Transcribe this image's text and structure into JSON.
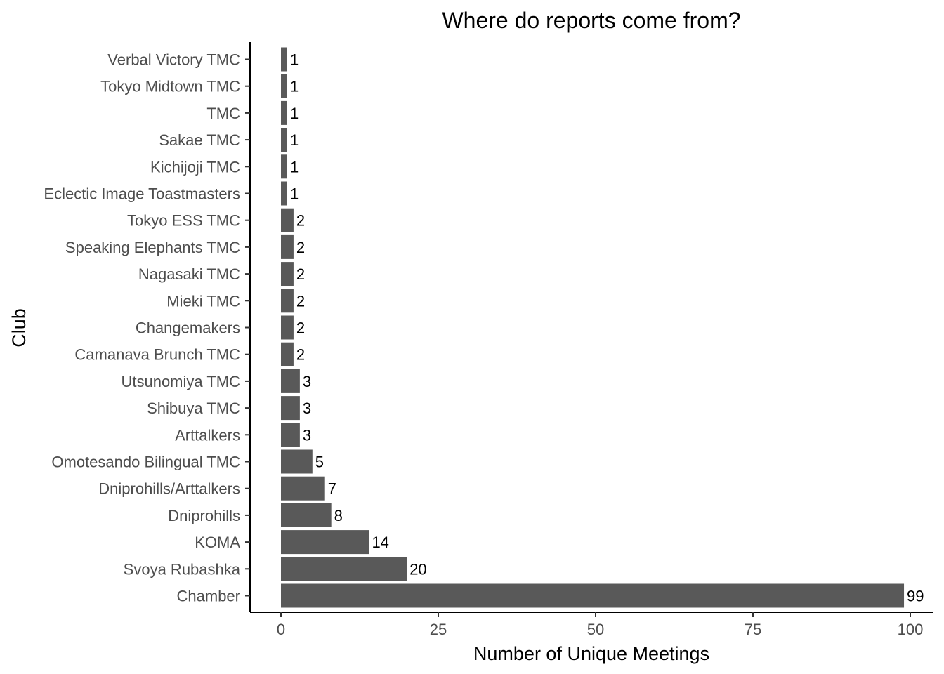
{
  "chart_data": {
    "type": "bar",
    "orientation": "horizontal",
    "title": "Where do reports come from?",
    "xlabel": "Number of Unique Meetings",
    "ylabel": "Club",
    "xlim": [
      0,
      100
    ],
    "xticks": [
      0,
      25,
      50,
      75,
      100
    ],
    "grid": false,
    "legend": "none",
    "bar_color": "#595959",
    "categories": [
      "Chamber",
      "Svoya Rubashka",
      "KOMA",
      "Dniprohills",
      "Dniprohills/Arttalkers",
      "Omotesando Bilingual TMC",
      "Arttalkers",
      "Shibuya TMC",
      "Utsunomiya TMC",
      "Camanava Brunch TMC",
      "Changemakers",
      "Mieki TMC",
      "Nagasaki TMC",
      "Speaking Elephants TMC",
      "Tokyo ESS TMC",
      "Eclectic Image Toastmasters",
      "Kichijoji TMC",
      "Sakae TMC",
      "TMC",
      "Tokyo Midtown TMC",
      "Verbal Victory TMC"
    ],
    "values": [
      99,
      20,
      14,
      8,
      7,
      5,
      3,
      3,
      3,
      2,
      2,
      2,
      2,
      2,
      2,
      1,
      1,
      1,
      1,
      1,
      1
    ]
  }
}
